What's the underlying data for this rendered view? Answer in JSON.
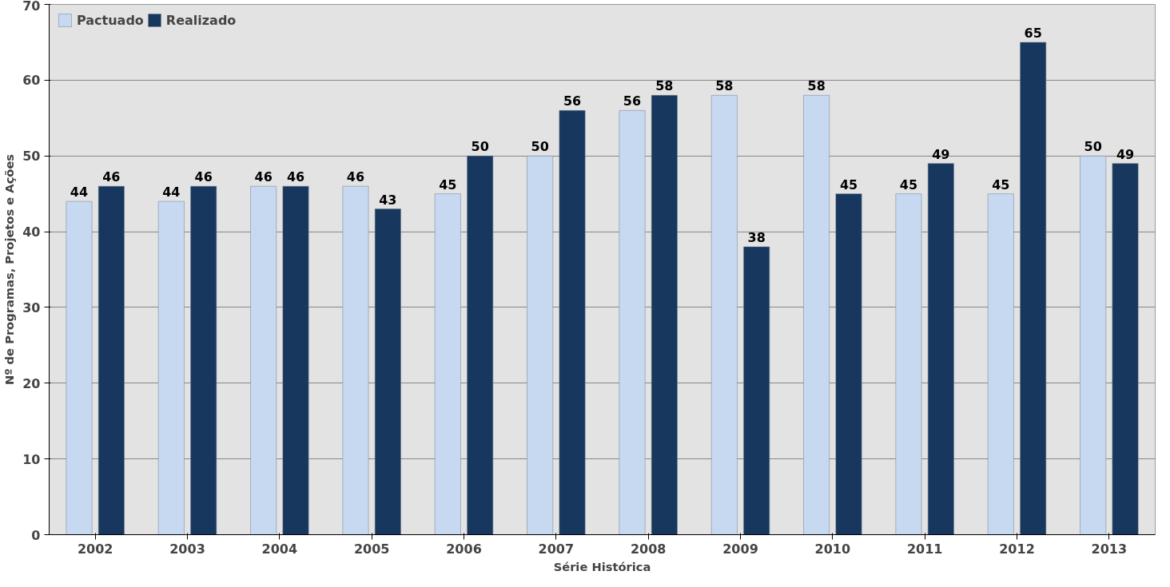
{
  "chart_data": {
    "type": "bar",
    "xlabel": "Série Histórica",
    "ylabel": "Nº de Programas, Projetos e Ações",
    "categories": [
      "2002",
      "2003",
      "2004",
      "2005",
      "2006",
      "2007",
      "2008",
      "2009",
      "2010",
      "2011",
      "2012",
      "2013"
    ],
    "series": [
      {
        "name": "Pactuado",
        "color": "#c6d9f1",
        "values": [
          44,
          44,
          46,
          46,
          45,
          50,
          56,
          58,
          58,
          45,
          45,
          50
        ]
      },
      {
        "name": "Realizado",
        "color": "#17375e",
        "values": [
          46,
          46,
          46,
          43,
          50,
          56,
          58,
          38,
          45,
          49,
          65,
          49
        ]
      }
    ],
    "ylim": [
      0,
      70
    ],
    "yticks": [
      0,
      10,
      20,
      30,
      40,
      50,
      60,
      70
    ],
    "grid": "y",
    "legend": "top left",
    "data_labels": true
  }
}
